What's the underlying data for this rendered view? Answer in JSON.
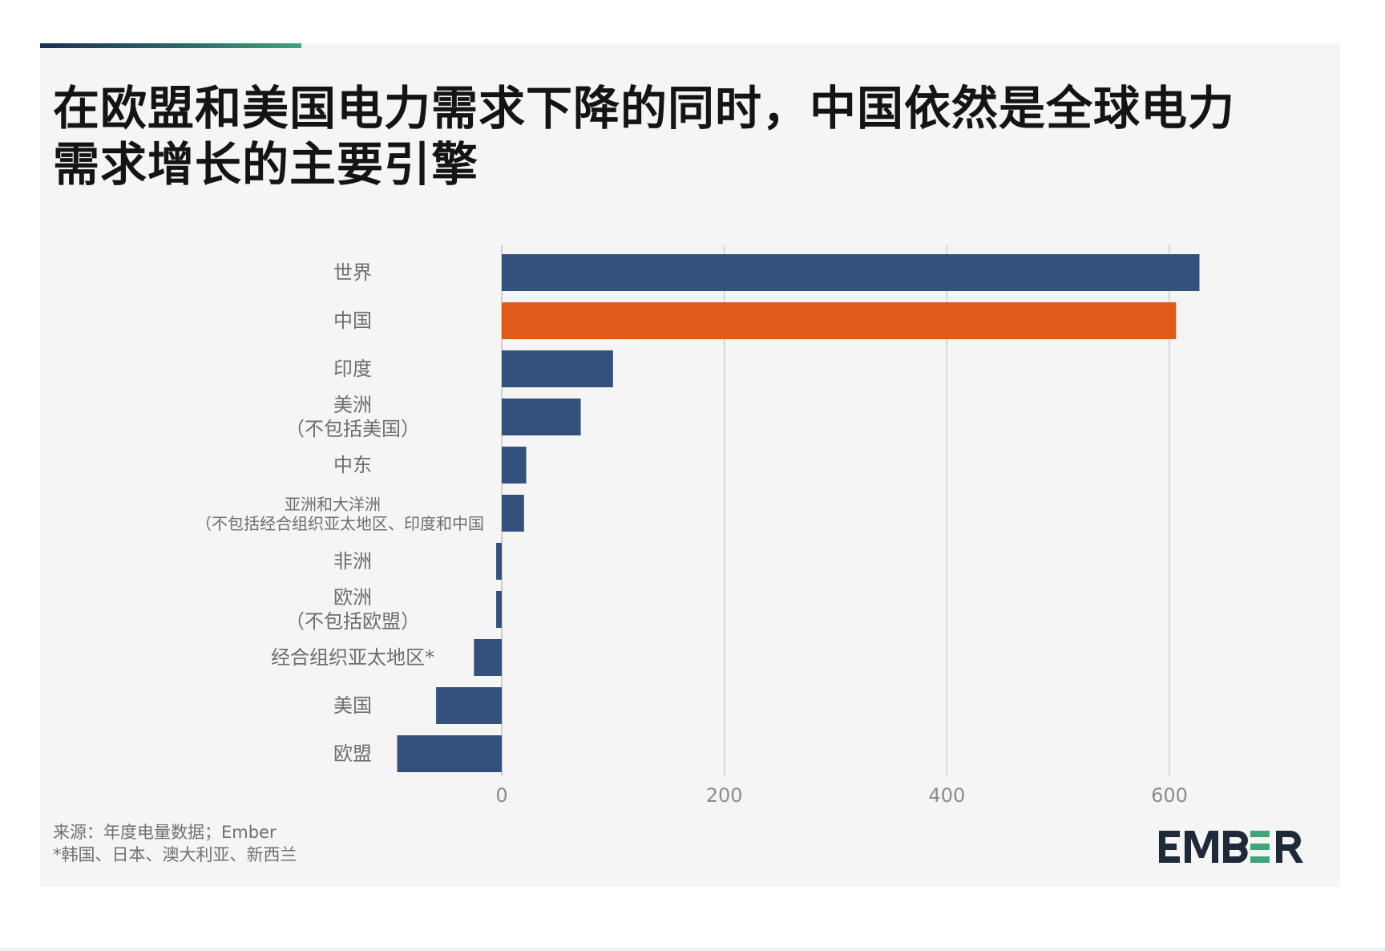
{
  "header": {
    "title_line1": "在欧盟和美国电力需求下降的同时，中国依然是全球电力",
    "title_line2": "需求增长的主要引擎"
  },
  "footer": {
    "source": "来源：年度电量数据；Ember",
    "note": "*韩国、日本、澳大利亚、新西兰",
    "logo_text": "EMBER"
  },
  "colors": {
    "bar_default": "#34507d",
    "bar_highlight": "#e05a1a",
    "gridline": "#d0d0d0",
    "logo_dark": "#1e2a3a",
    "logo_accent": "#3fa57a"
  },
  "chart_data": {
    "type": "bar",
    "orientation": "horizontal",
    "title": "在欧盟和美国电力需求下降的同时，中国依然是全球电力需求增长的主要引擎",
    "categories": [
      [
        "世界"
      ],
      [
        "中国"
      ],
      [
        "印度"
      ],
      [
        "美洲",
        "（不包括美国）"
      ],
      [
        "中东"
      ],
      [
        "亚洲和大洋洲",
        "（不包括经合组织亚太地区、印度和中国"
      ],
      [
        "非洲"
      ],
      [
        "欧洲",
        "（不包括欧盟）"
      ],
      [
        "经合组织亚太地区*"
      ],
      [
        "美国"
      ],
      [
        "欧盟"
      ]
    ],
    "values": [
      627,
      606,
      100,
      71,
      22,
      20,
      -5,
      -5,
      -25,
      -59,
      -94
    ],
    "highlight_index": 1,
    "xlim": [
      -100,
      720
    ],
    "xticks": [
      0,
      200,
      400,
      600
    ],
    "xtick_labels": [
      "0",
      "200",
      "400",
      "600"
    ],
    "grid": true,
    "legend": "none",
    "xlabel": "",
    "ylabel": ""
  }
}
